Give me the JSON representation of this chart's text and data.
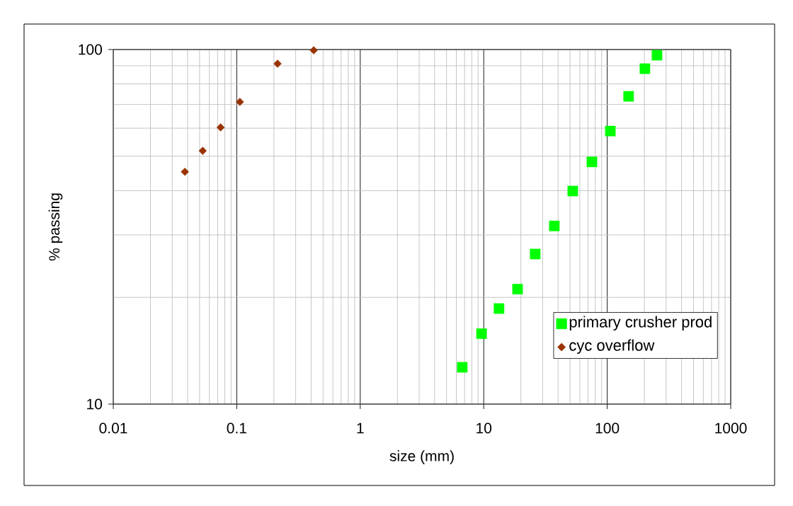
{
  "chart_data": {
    "type": "scatter",
    "xlabel": "size (mm)",
    "ylabel": "% passing",
    "log": "xy",
    "xlim": [
      0.01,
      1000
    ],
    "ylim": [
      10,
      100
    ],
    "xticks": [
      0.01,
      0.1,
      1,
      10,
      100,
      1000
    ],
    "yticks": [
      10,
      100
    ],
    "grid": true,
    "legend": "bottom right",
    "series": [
      {
        "name": "primary crusher prod",
        "color": "#00ff00",
        "marker": "square",
        "x": [
          6.7,
          9.6,
          13.3,
          18.8,
          26.1,
          37.3,
          52.6,
          75.2,
          106,
          149,
          202,
          253
        ],
        "values": [
          12.7,
          15.8,
          18.6,
          21.1,
          26.5,
          31.8,
          39.9,
          48.2,
          58.9,
          73.8,
          88.3,
          96.4
        ]
      },
      {
        "name": "cyc overflow",
        "color": "#993300",
        "marker": "diamond",
        "x": [
          0.038,
          0.053,
          0.074,
          0.106,
          0.214,
          0.42
        ],
        "values": [
          45.2,
          51.8,
          60.3,
          71.2,
          91.2,
          99.5
        ]
      }
    ]
  }
}
